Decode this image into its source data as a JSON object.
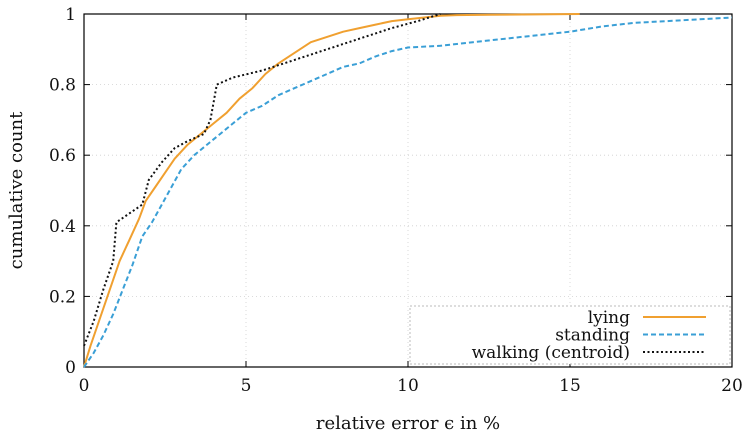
{
  "chart_data": {
    "type": "line",
    "xlabel": "relative error ϵ in %",
    "ylabel": "cumulative count",
    "xlim": [
      0,
      20
    ],
    "ylim": [
      0,
      1
    ],
    "x_ticks": [
      0,
      5,
      10,
      15,
      20
    ],
    "y_ticks": [
      0,
      0.2,
      0.4,
      0.6,
      0.8,
      1
    ],
    "x_tick_labels": [
      "0",
      "5",
      "10",
      "15",
      "20"
    ],
    "y_tick_labels": [
      "0",
      "0.2",
      "0.4",
      "0.6",
      "0.8",
      "1"
    ],
    "grid": true,
    "legend_position": "bottom-right",
    "series": [
      {
        "name": "lying",
        "color": "#f0a030",
        "style": "solid",
        "points": [
          [
            0,
            0
          ],
          [
            0.2,
            0.06
          ],
          [
            0.5,
            0.14
          ],
          [
            0.8,
            0.22
          ],
          [
            1.1,
            0.3
          ],
          [
            1.4,
            0.36
          ],
          [
            1.7,
            0.42
          ],
          [
            1.9,
            0.47
          ],
          [
            2.2,
            0.51
          ],
          [
            2.5,
            0.55
          ],
          [
            2.8,
            0.59
          ],
          [
            3.2,
            0.63
          ],
          [
            3.6,
            0.66
          ],
          [
            4.0,
            0.69
          ],
          [
            4.4,
            0.72
          ],
          [
            4.8,
            0.76
          ],
          [
            5.2,
            0.79
          ],
          [
            5.6,
            0.83
          ],
          [
            6.0,
            0.86
          ],
          [
            6.5,
            0.89
          ],
          [
            7.0,
            0.92
          ],
          [
            7.5,
            0.935
          ],
          [
            8.0,
            0.95
          ],
          [
            8.5,
            0.96
          ],
          [
            9.0,
            0.97
          ],
          [
            9.5,
            0.98
          ],
          [
            10.0,
            0.985
          ],
          [
            10.5,
            0.99
          ],
          [
            11.0,
            0.995
          ],
          [
            11.5,
            0.997
          ],
          [
            12.5,
            0.998
          ],
          [
            14.0,
            0.999
          ],
          [
            15.3,
            1.0
          ]
        ]
      },
      {
        "name": "standing",
        "color": "#3a9fd6",
        "style": "dashed",
        "points": [
          [
            0,
            0
          ],
          [
            0.3,
            0.04
          ],
          [
            0.6,
            0.09
          ],
          [
            0.9,
            0.15
          ],
          [
            1.2,
            0.22
          ],
          [
            1.5,
            0.29
          ],
          [
            1.8,
            0.37
          ],
          [
            2.1,
            0.41
          ],
          [
            2.4,
            0.46
          ],
          [
            2.7,
            0.51
          ],
          [
            3.0,
            0.56
          ],
          [
            3.4,
            0.6
          ],
          [
            3.8,
            0.63
          ],
          [
            4.2,
            0.66
          ],
          [
            4.6,
            0.69
          ],
          [
            5.0,
            0.72
          ],
          [
            5.5,
            0.74
          ],
          [
            6.0,
            0.77
          ],
          [
            6.5,
            0.79
          ],
          [
            7.0,
            0.81
          ],
          [
            7.5,
            0.83
          ],
          [
            8.0,
            0.85
          ],
          [
            8.5,
            0.86
          ],
          [
            9.0,
            0.88
          ],
          [
            9.5,
            0.895
          ],
          [
            10.0,
            0.905
          ],
          [
            11.0,
            0.91
          ],
          [
            12.0,
            0.92
          ],
          [
            13.0,
            0.93
          ],
          [
            14.0,
            0.94
          ],
          [
            15.0,
            0.95
          ],
          [
            16.0,
            0.965
          ],
          [
            17.0,
            0.975
          ],
          [
            18.0,
            0.98
          ],
          [
            19.0,
            0.985
          ],
          [
            20.0,
            0.99
          ]
        ]
      },
      {
        "name": "walking (centroid)",
        "color": "#111111",
        "style": "dotted",
        "points": [
          [
            0,
            0.06
          ],
          [
            0.3,
            0.13
          ],
          [
            0.6,
            0.22
          ],
          [
            0.9,
            0.3
          ],
          [
            1.0,
            0.41
          ],
          [
            1.8,
            0.46
          ],
          [
            2.0,
            0.53
          ],
          [
            2.4,
            0.58
          ],
          [
            2.8,
            0.62
          ],
          [
            3.2,
            0.64
          ],
          [
            3.7,
            0.66
          ],
          [
            3.9,
            0.7
          ],
          [
            4.0,
            0.75
          ],
          [
            4.1,
            0.8
          ],
          [
            4.6,
            0.82
          ],
          [
            5.5,
            0.84
          ],
          [
            6.5,
            0.87
          ],
          [
            7.5,
            0.9
          ],
          [
            8.5,
            0.93
          ],
          [
            9.5,
            0.96
          ],
          [
            10.3,
            0.98
          ],
          [
            11.0,
            1.0
          ]
        ]
      }
    ]
  }
}
